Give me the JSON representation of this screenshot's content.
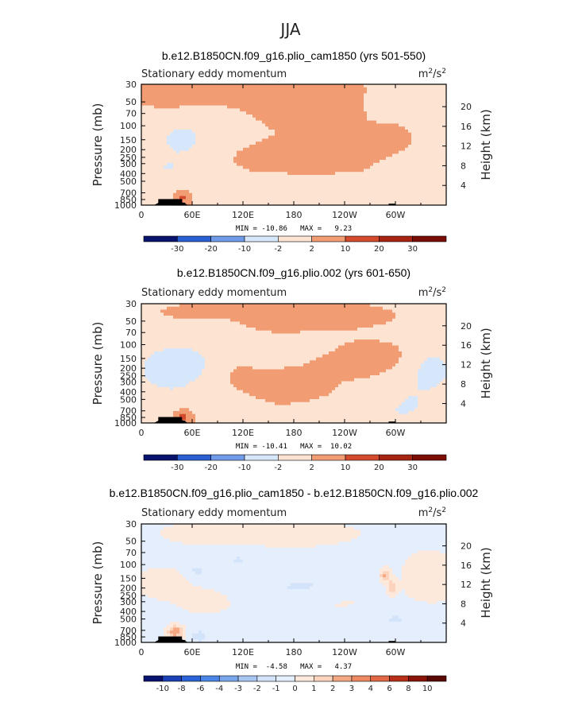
{
  "figure": {
    "title": "JJA",
    "colors": {
      "blue": [
        "#08136e",
        "#1b3fb5",
        "#2a64d8",
        "#4a86e8",
        "#7aa7ec",
        "#a8c6f2",
        "#d4e5fa"
      ],
      "red": [
        "#fde2d2",
        "#f8c4a4",
        "#f29c74",
        "#e8714a",
        "#d44a2c",
        "#a82412",
        "#7a0d06"
      ],
      "topography": "#000000"
    }
  },
  "chart_data": [
    {
      "type": "contour",
      "title": "b.e12.B1850CN.f09_g16.plio_cam1850 (yrs 501-550)",
      "left_label": "Stationary eddy momentum",
      "units_label": "m",
      "units_sup1": "2",
      "units_mid": "/s",
      "units_sup2": "2",
      "ylabel": "Pressure (mb)",
      "y2label": "Height (km)",
      "xticks": [
        {
          "lon": 0,
          "label": "0"
        },
        {
          "lon": 60,
          "label": "60E"
        },
        {
          "lon": 120,
          "label": "120E"
        },
        {
          "lon": 180,
          "label": "180"
        },
        {
          "lon": 240,
          "label": "120W"
        },
        {
          "lon": 300,
          "label": "60W"
        }
      ],
      "xlim": [
        0,
        360
      ],
      "pressure_ticks": [
        30,
        50,
        70,
        100,
        150,
        200,
        250,
        300,
        400,
        500,
        700,
        850,
        1000
      ],
      "pressure_labels": [
        "30",
        "50",
        "70",
        "100",
        "150",
        "200",
        "250",
        "300",
        "400",
        "500",
        "700",
        "850",
        "1000"
      ],
      "ylim": [
        1000,
        30
      ],
      "height_ticks": [
        4,
        8,
        12,
        16,
        20
      ],
      "height_labels": [
        "4",
        "8",
        "12",
        "16",
        "20"
      ],
      "minmax": "MIN = -10.86   MAX =   9.23",
      "min": -10.86,
      "max": 9.23,
      "colorbar_levels": [
        -30,
        -20,
        -10,
        -2,
        2,
        10,
        20,
        30
      ],
      "colorbar_labels": [
        "-30",
        "-20",
        "-10",
        "-2",
        "2",
        "10",
        "20",
        "30"
      ],
      "field_variant": "A"
    },
    {
      "type": "contour",
      "title": "b.e12.B1850CN.f09_g16.plio.002 (yrs 601-650)",
      "left_label": "Stationary eddy momentum",
      "units_label": "m",
      "units_sup1": "2",
      "units_mid": "/s",
      "units_sup2": "2",
      "ylabel": "Pressure (mb)",
      "y2label": "Height (km)",
      "xticks": [
        {
          "lon": 0,
          "label": "0"
        },
        {
          "lon": 60,
          "label": "60E"
        },
        {
          "lon": 120,
          "label": "120E"
        },
        {
          "lon": 180,
          "label": "180"
        },
        {
          "lon": 240,
          "label": "120W"
        },
        {
          "lon": 300,
          "label": "60W"
        }
      ],
      "xlim": [
        0,
        360
      ],
      "pressure_ticks": [
        30,
        50,
        70,
        100,
        150,
        200,
        250,
        300,
        400,
        500,
        700,
        850,
        1000
      ],
      "pressure_labels": [
        "30",
        "50",
        "70",
        "100",
        "150",
        "200",
        "250",
        "300",
        "400",
        "500",
        "700",
        "850",
        "1000"
      ],
      "ylim": [
        1000,
        30
      ],
      "height_ticks": [
        4,
        8,
        12,
        16,
        20
      ],
      "height_labels": [
        "4",
        "8",
        "12",
        "16",
        "20"
      ],
      "minmax": "MIN = -10.41   MAX =  10.02",
      "min": -10.41,
      "max": 10.02,
      "colorbar_levels": [
        -30,
        -20,
        -10,
        -2,
        2,
        10,
        20,
        30
      ],
      "colorbar_labels": [
        "-30",
        "-20",
        "-10",
        "-2",
        "2",
        "10",
        "20",
        "30"
      ],
      "field_variant": "B"
    },
    {
      "type": "contour",
      "title": "b.e12.B1850CN.f09_g16.plio_cam1850 - b.e12.B1850CN.f09_g16.plio.002",
      "left_label": "Stationary eddy momentum",
      "units_label": "m",
      "units_sup1": "2",
      "units_mid": "/s",
      "units_sup2": "2",
      "ylabel": "Pressure (mb)",
      "y2label": "Height (km)",
      "xticks": [
        {
          "lon": 0,
          "label": "0"
        },
        {
          "lon": 60,
          "label": "60E"
        },
        {
          "lon": 120,
          "label": "120E"
        },
        {
          "lon": 180,
          "label": "180"
        },
        {
          "lon": 240,
          "label": "120W"
        },
        {
          "lon": 300,
          "label": "60W"
        }
      ],
      "xlim": [
        0,
        360
      ],
      "pressure_ticks": [
        30,
        50,
        70,
        100,
        150,
        200,
        250,
        300,
        400,
        500,
        700,
        850,
        1000
      ],
      "pressure_labels": [
        "30",
        "50",
        "70",
        "100",
        "150",
        "200",
        "250",
        "300",
        "400",
        "500",
        "700",
        "850",
        "1000"
      ],
      "ylim": [
        1000,
        30
      ],
      "height_ticks": [
        4,
        8,
        12,
        16,
        20
      ],
      "height_labels": [
        "4",
        "8",
        "12",
        "16",
        "20"
      ],
      "minmax": "MIN =  -4.58   MAX =   4.37",
      "min": -4.58,
      "max": 4.37,
      "colorbar_levels": [
        -10,
        -8,
        -6,
        -4,
        -3,
        -2,
        -1,
        0,
        1,
        2,
        3,
        4,
        6,
        8,
        10
      ],
      "colorbar_labels": [
        "-10",
        "-8",
        "-6",
        "-4",
        "-3",
        "-2",
        "-1",
        "0",
        "1",
        "2",
        "3",
        "4",
        "6",
        "8",
        "10"
      ],
      "field_variant": "C"
    }
  ]
}
